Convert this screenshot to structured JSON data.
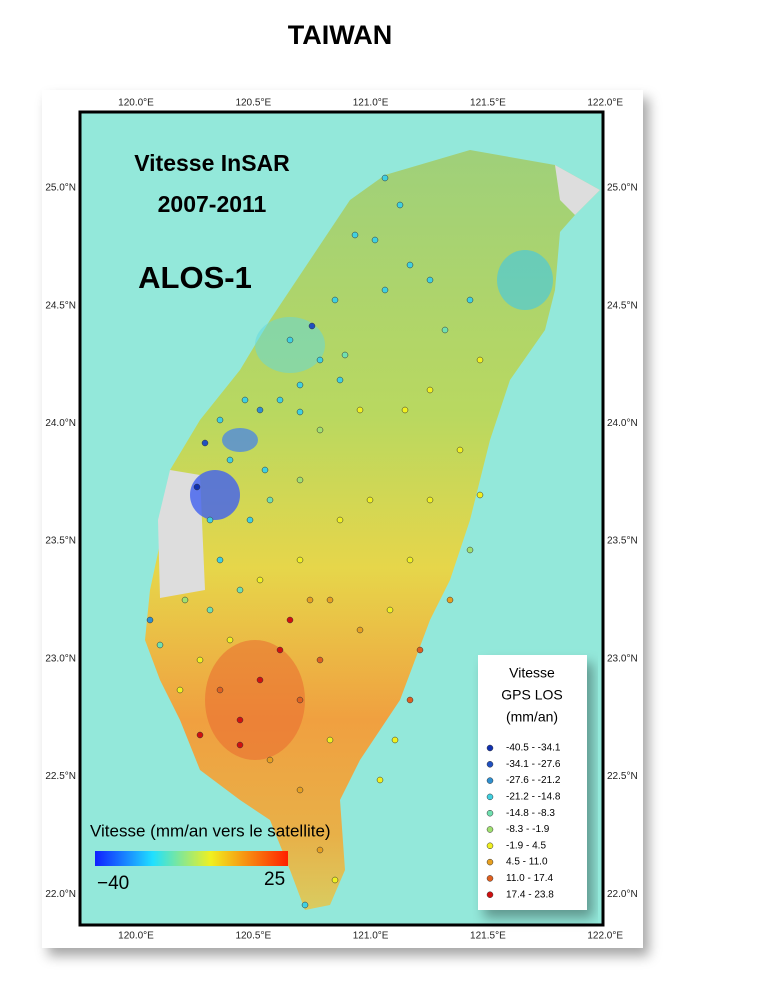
{
  "title": "TAIWAN",
  "map": {
    "heading": [
      "Vitesse InSAR",
      "2007-2011"
    ],
    "satellite": "ALOS-1",
    "lon_ticks": [
      "120.0°E",
      "120.5°E",
      "121.0°E",
      "121.5°E",
      "122.0°E"
    ],
    "lat_ticks": [
      "25.0°N",
      "24.5°N",
      "24.0°N",
      "23.5°N",
      "23.0°N",
      "22.5°N",
      "22.0°N"
    ],
    "colorbar": {
      "label": "Vitesse  (mm/an vers le satellite)",
      "min_label": "−40",
      "max_label": "25"
    },
    "legend": {
      "title": [
        "Vitesse",
        "GPS LOS",
        "(mm/an)"
      ],
      "classes": [
        {
          "label": "-40.5 - -34.1",
          "color": "#1030b0"
        },
        {
          "label": "-34.1 - -27.6",
          "color": "#2050c0"
        },
        {
          "label": "-27.6 - -21.2",
          "color": "#3090d0"
        },
        {
          "label": "-21.2 - -14.8",
          "color": "#40d0e0"
        },
        {
          "label": "-14.8 - -8.3",
          "color": "#70e0b0"
        },
        {
          "label": "-8.3 - -1.9",
          "color": "#a0e070"
        },
        {
          "label": "-1.9 - 4.5",
          "color": "#f0f020"
        },
        {
          "label": "4.5 - 11.0",
          "color": "#e8a020"
        },
        {
          "label": "11.0 - 17.4",
          "color": "#e06020"
        },
        {
          "label": "17.4 - 23.8",
          "color": "#d01010"
        }
      ]
    }
  }
}
